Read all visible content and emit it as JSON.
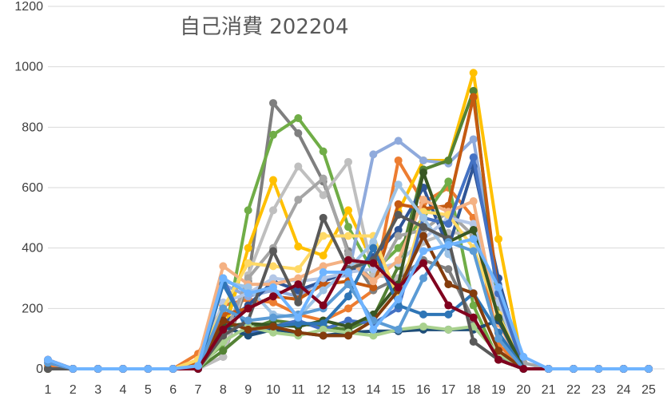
{
  "chart_data": {
    "type": "line",
    "title": "自己消費 202204",
    "xlabel": "",
    "ylabel": "",
    "x": [
      1,
      2,
      3,
      4,
      5,
      6,
      7,
      8,
      9,
      10,
      11,
      12,
      13,
      14,
      15,
      16,
      17,
      18,
      19,
      20,
      21,
      22,
      23,
      24,
      25
    ],
    "ylim": [
      0,
      1200
    ],
    "yticks": [
      0,
      200,
      400,
      600,
      800,
      1000,
      1200
    ],
    "grid": true,
    "legend": "none",
    "series": [
      {
        "color": "#ed7d31",
        "values": [
          10,
          0,
          0,
          0,
          0,
          0,
          50,
          210,
          230,
          220,
          180,
          160,
          200,
          260,
          690,
          550,
          600,
          500,
          80,
          0,
          0,
          0,
          0,
          0,
          0
        ]
      },
      {
        "color": "#7f7f7f",
        "values": [
          0,
          0,
          0,
          0,
          0,
          0,
          0,
          40,
          290,
          880,
          780,
          620,
          390,
          260,
          300,
          360,
          330,
          160,
          40,
          0,
          0,
          0,
          0,
          0,
          0
        ]
      },
      {
        "color": "#70ad47",
        "values": [
          0,
          0,
          0,
          0,
          0,
          0,
          10,
          80,
          525,
          775,
          830,
          720,
          470,
          320,
          400,
          500,
          620,
          210,
          30,
          0,
          0,
          0,
          0,
          0,
          0
        ]
      },
      {
        "color": "#ffc000",
        "values": [
          0,
          0,
          0,
          0,
          0,
          0,
          30,
          110,
          400,
          625,
          405,
          375,
          525,
          350,
          520,
          690,
          690,
          980,
          430,
          0,
          0,
          0,
          0,
          0,
          0
        ]
      },
      {
        "color": "#bfbfbf",
        "values": [
          0,
          0,
          0,
          0,
          0,
          0,
          0,
          40,
          310,
          525,
          670,
          575,
          685,
          310,
          300,
          420,
          450,
          450,
          200,
          0,
          0,
          0,
          0,
          0,
          0
        ]
      },
      {
        "color": "#8faadc",
        "values": [
          0,
          0,
          0,
          0,
          0,
          0,
          20,
          280,
          240,
          260,
          240,
          300,
          310,
          710,
          755,
          690,
          680,
          760,
          280,
          20,
          0,
          0,
          0,
          0,
          0
        ]
      },
      {
        "color": "#548235",
        "values": [
          0,
          0,
          0,
          0,
          0,
          0,
          0,
          60,
          130,
          160,
          150,
          140,
          130,
          170,
          340,
          660,
          690,
          920,
          200,
          0,
          0,
          0,
          0,
          0,
          0
        ]
      },
      {
        "color": "#2f5597",
        "values": [
          0,
          0,
          0,
          0,
          0,
          0,
          0,
          150,
          210,
          290,
          260,
          290,
          320,
          370,
          460,
          600,
          400,
          670,
          300,
          0,
          0,
          0,
          0,
          0,
          0
        ]
      },
      {
        "color": "#a5a5a5",
        "values": [
          0,
          0,
          0,
          0,
          0,
          0,
          0,
          100,
          300,
          400,
          560,
          630,
          380,
          290,
          440,
          460,
          520,
          440,
          230,
          20,
          0,
          0,
          0,
          0,
          0
        ]
      },
      {
        "color": "#c55a11",
        "values": [
          0,
          0,
          0,
          0,
          0,
          0,
          20,
          180,
          200,
          240,
          230,
          280,
          290,
          270,
          545,
          530,
          540,
          900,
          240,
          0,
          0,
          0,
          0,
          0,
          0
        ]
      },
      {
        "color": "#b4c7e7",
        "values": [
          30,
          0,
          0,
          0,
          0,
          0,
          10,
          220,
          250,
          300,
          290,
          300,
          320,
          330,
          350,
          430,
          500,
          480,
          220,
          0,
          0,
          0,
          0,
          0,
          0
        ]
      },
      {
        "color": "#f4b183",
        "values": [
          0,
          0,
          0,
          0,
          0,
          0,
          30,
          340,
          280,
          280,
          300,
          340,
          360,
          290,
          360,
          560,
          520,
          555,
          150,
          0,
          0,
          0,
          0,
          0,
          0
        ]
      },
      {
        "color": "#ffd966",
        "values": [
          0,
          0,
          0,
          0,
          0,
          0,
          30,
          200,
          350,
          340,
          330,
          440,
          440,
          440,
          230,
          520,
          510,
          400,
          180,
          0,
          0,
          0,
          0,
          0,
          0
        ]
      },
      {
        "color": "#4472c4",
        "values": [
          0,
          0,
          0,
          0,
          0,
          0,
          0,
          300,
          120,
          140,
          160,
          130,
          160,
          150,
          200,
          500,
          480,
          700,
          250,
          0,
          0,
          0,
          0,
          0,
          0
        ]
      },
      {
        "color": "#1f4e79",
        "values": [
          0,
          0,
          0,
          0,
          0,
          0,
          0,
          140,
          110,
          130,
          120,
          110,
          120,
          125,
          125,
          130,
          130,
          130,
          160,
          0,
          0,
          0,
          0,
          0,
          0
        ]
      },
      {
        "color": "#385723",
        "values": [
          0,
          0,
          0,
          0,
          0,
          0,
          0,
          140,
          150,
          145,
          140,
          160,
          140,
          180,
          280,
          650,
          420,
          460,
          170,
          0,
          0,
          0,
          0,
          0,
          0
        ]
      },
      {
        "color": "#9dc3e6",
        "values": [
          0,
          0,
          0,
          0,
          0,
          0,
          10,
          290,
          270,
          180,
          170,
          260,
          330,
          420,
          610,
          500,
          380,
          250,
          120,
          0,
          0,
          0,
          0,
          0,
          0
        ]
      },
      {
        "color": "#2e75b6",
        "values": [
          0,
          0,
          0,
          0,
          0,
          0,
          0,
          280,
          130,
          140,
          150,
          150,
          240,
          400,
          210,
          180,
          180,
          250,
          120,
          0,
          0,
          0,
          0,
          0,
          0
        ]
      },
      {
        "color": "#a9d18e",
        "values": [
          0,
          0,
          0,
          0,
          0,
          0,
          0,
          90,
          140,
          120,
          110,
          130,
          120,
          110,
          130,
          140,
          130,
          140,
          50,
          0,
          0,
          0,
          0,
          0,
          0
        ]
      },
      {
        "color": "#843c0c",
        "values": [
          0,
          0,
          0,
          0,
          0,
          0,
          0,
          160,
          130,
          140,
          120,
          110,
          110,
          160,
          260,
          440,
          280,
          250,
          60,
          0,
          0,
          0,
          0,
          0,
          0
        ]
      },
      {
        "color": "#595959",
        "values": [
          0,
          0,
          0,
          0,
          0,
          0,
          0,
          110,
          160,
          390,
          220,
          500,
          330,
          360,
          510,
          470,
          430,
          90,
          30,
          0,
          0,
          0,
          0,
          0,
          0
        ]
      },
      {
        "color": "#5b9bd5",
        "values": [
          20,
          0,
          0,
          0,
          0,
          0,
          0,
          200,
          160,
          170,
          180,
          200,
          280,
          160,
          130,
          300,
          420,
          390,
          100,
          0,
          0,
          0,
          0,
          0,
          0
        ]
      },
      {
        "color": "#80001e",
        "values": [
          30,
          0,
          0,
          0,
          0,
          0,
          0,
          130,
          200,
          240,
          280,
          210,
          360,
          350,
          270,
          350,
          210,
          170,
          30,
          0,
          0,
          0,
          0,
          0,
          0
        ]
      },
      {
        "color": "#6fb4ff",
        "values": [
          30,
          0,
          0,
          0,
          0,
          0,
          10,
          300,
          250,
          270,
          170,
          320,
          320,
          130,
          230,
          390,
          410,
          430,
          270,
          40,
          0,
          0,
          0,
          0,
          0
        ]
      }
    ]
  }
}
